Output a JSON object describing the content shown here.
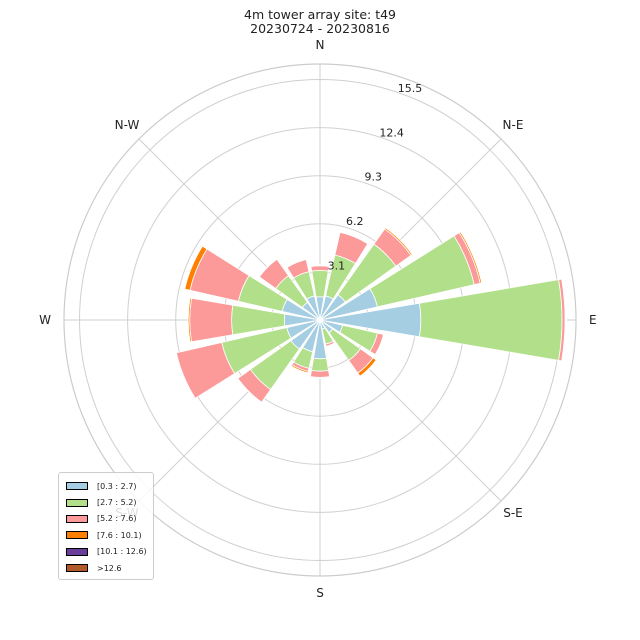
{
  "chart_data": {
    "type": "windrose",
    "title": "4m tower array site: t49",
    "subtitle": "20230724 - 20230816",
    "directions": [
      "N",
      "N-E",
      "E",
      "S-E",
      "S",
      "S-W",
      "W",
      "N-W"
    ],
    "radial_ticks": [
      "3.1",
      "6.2",
      "9.3",
      "12.4",
      "15.5"
    ],
    "rmax": 16.5,
    "grid": true,
    "sectors_deg": [
      0,
      22.5,
      45,
      67.5,
      90,
      112.5,
      135,
      157.5,
      180,
      202.5,
      225,
      247.5,
      270,
      292.5,
      315,
      337.5
    ],
    "bins": [
      {
        "name": "[0.3 : 2.7)",
        "color": "#a6cee3"
      },
      {
        "name": "[2.7 : 5.2)",
        "color": "#b2df8a"
      },
      {
        "name": "[5.2 : 7.6)",
        "color": "#fb9a99"
      },
      {
        "name": "[7.6 : 10.1)",
        "color": "#ff7f00"
      },
      {
        "name": "[10.1 : 12.6)",
        "color": "#6a3d9a"
      },
      {
        "name": ">12.6",
        "color": "#b15928"
      }
    ],
    "cumulative_by_sector": [
      [
        1.5,
        3.2,
        3.5,
        3.55,
        3.56,
        3.56
      ],
      [
        1.6,
        4.3,
        5.8,
        5.85,
        5.86,
        5.86
      ],
      [
        2.0,
        6.0,
        7.2,
        7.3,
        7.31,
        7.31
      ],
      [
        3.8,
        10.2,
        10.6,
        10.7,
        10.71,
        10.71
      ],
      [
        6.5,
        15.6,
        15.8,
        15.85,
        15.86,
        15.9
      ],
      [
        1.5,
        3.8,
        4.2,
        4.25,
        4.26,
        4.26
      ],
      [
        1.0,
        3.2,
        4.2,
        4.45,
        4.5,
        4.5
      ],
      [
        0.6,
        1.6,
        1.75,
        1.8,
        1.81,
        1.81
      ],
      [
        2.5,
        3.3,
        3.7,
        3.75,
        3.76,
        3.76
      ],
      [
        2.1,
        3.2,
        3.4,
        3.5,
        3.51,
        3.51
      ],
      [
        2.3,
        5.5,
        6.5,
        6.52,
        6.53,
        6.53
      ],
      [
        2.2,
        6.5,
        9.5,
        9.55,
        9.56,
        9.56
      ],
      [
        2.3,
        5.7,
        8.4,
        8.5,
        8.51,
        8.51
      ],
      [
        2.5,
        5.4,
        8.6,
        8.95,
        8.97,
        8.97
      ],
      [
        1.4,
        3.5,
        4.8,
        4.85,
        4.86,
        4.86
      ],
      [
        1.6,
        3.2,
        4.0,
        4.02,
        4.03,
        4.03
      ]
    ]
  },
  "legend": {
    "items": [
      {
        "label": "[0.3 : 2.7)",
        "color": "#a6cee3"
      },
      {
        "label": "[2.7 : 5.2)",
        "color": "#b2df8a"
      },
      {
        "label": "[5.2 : 7.6)",
        "color": "#fb9a99"
      },
      {
        "label": "[7.6 : 10.1)",
        "color": "#ff7f00"
      },
      {
        "label": "[10.1 : 12.6)",
        "color": "#6a3d9a"
      },
      {
        "label": ">12.6",
        "color": "#b15928"
      }
    ]
  }
}
